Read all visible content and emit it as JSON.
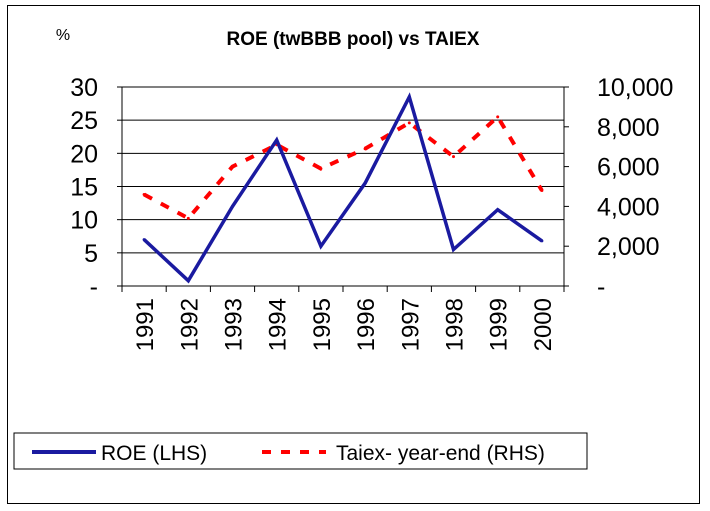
{
  "chart_data": {
    "type": "line",
    "title": "ROE (twBBB pool) vs TAIEX",
    "ylabel_left": "%",
    "categories": [
      "1991",
      "1992",
      "1993",
      "1994",
      "1995",
      "1996",
      "1997",
      "1998",
      "1999",
      "2000"
    ],
    "series": [
      {
        "name": "ROE (LHS)",
        "axis": "left",
        "color": "#1a1aa0",
        "style": "solid",
        "values": [
          7,
          0.8,
          12,
          22,
          6,
          15.5,
          28.5,
          5.5,
          11.5,
          6.8
        ]
      },
      {
        "name": "Taiex- year-end (RHS)",
        "axis": "right",
        "color": "#ff0000",
        "style": "dashed",
        "values": [
          4600,
          3400,
          6000,
          7100,
          5900,
          6900,
          8200,
          6500,
          8500,
          4800
        ]
      }
    ],
    "y_left": {
      "min": 0,
      "max": 30,
      "ticks": [
        0,
        5,
        10,
        15,
        20,
        25,
        30
      ],
      "tick_labels": [
        "-",
        "5",
        "10",
        "15",
        "20",
        "25",
        "30"
      ]
    },
    "y_right": {
      "min": 0,
      "max": 10000,
      "ticks": [
        0,
        2000,
        4000,
        6000,
        8000,
        10000
      ],
      "tick_labels": [
        "-",
        "2,000",
        "4,000",
        "6,000",
        "8,000",
        "10,000"
      ]
    },
    "grid": true,
    "legend_position": "bottom"
  }
}
